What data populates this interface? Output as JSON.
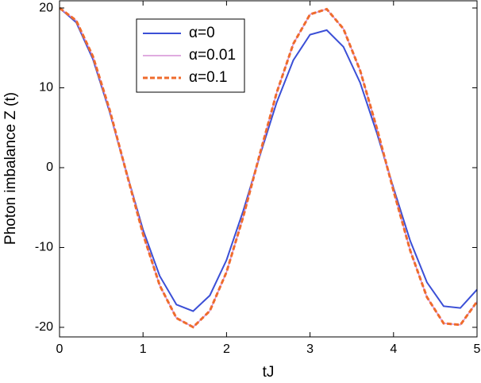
{
  "chart_data": {
    "type": "line",
    "xlabel": "tJ",
    "ylabel": "Photon imbalance Z (t)",
    "x": [
      0,
      0.2,
      0.4,
      0.6,
      0.8,
      1.0,
      1.2,
      1.4,
      1.6,
      1.8,
      2.0,
      2.2,
      2.4,
      2.6,
      2.8,
      3.0,
      3.2,
      3.4,
      3.6,
      3.8,
      4.0,
      4.2,
      4.4,
      4.6,
      4.8,
      5.0
    ],
    "series": [
      {
        "name": "α=0",
        "color": "#3b4fd6",
        "dash": false,
        "width": 2,
        "values": [
          20,
          18.19,
          13.59,
          6.98,
          -0.55,
          -7.78,
          -13.57,
          -17.15,
          -17.97,
          -16.01,
          -11.57,
          -5.41,
          1.53,
          8.15,
          13.46,
          16.66,
          17.23,
          15.13,
          10.65,
          4.34,
          -2.56,
          -9.17,
          -14.36,
          -17.35,
          -17.58,
          -15.27
        ]
      },
      {
        "name": "α=0.01",
        "color": "#d58fd6",
        "dash": false,
        "width": 1.5,
        "values": [
          20,
          18.42,
          13.93,
          7.25,
          -0.58,
          -8.32,
          -14.75,
          -18.84,
          -19.97,
          -17.94,
          -13.07,
          -6.15,
          1.75,
          9.37,
          15.51,
          19.2,
          19.86,
          17.39,
          12.17,
          4.95,
          -2.91,
          -10.39,
          -16.22,
          -19.5,
          -19.69,
          -16.78
        ]
      },
      {
        "name": "α=0.1",
        "color": "#ef6b2c",
        "dash": true,
        "width": 3,
        "values": [
          20,
          18.42,
          13.93,
          7.25,
          -0.58,
          -8.32,
          -14.75,
          -18.84,
          -19.97,
          -17.94,
          -13.07,
          -6.15,
          1.75,
          9.37,
          15.51,
          19.2,
          19.86,
          17.39,
          12.17,
          4.95,
          -2.91,
          -10.39,
          -16.22,
          -19.5,
          -19.69,
          -16.78
        ]
      }
    ],
    "xlim": [
      0,
      5
    ],
    "xticks": [
      0,
      1,
      2,
      3,
      4,
      5
    ],
    "ylim": [
      -21.2,
      20.9
    ],
    "yticks": [
      -20,
      -10,
      0,
      10,
      20
    ]
  }
}
